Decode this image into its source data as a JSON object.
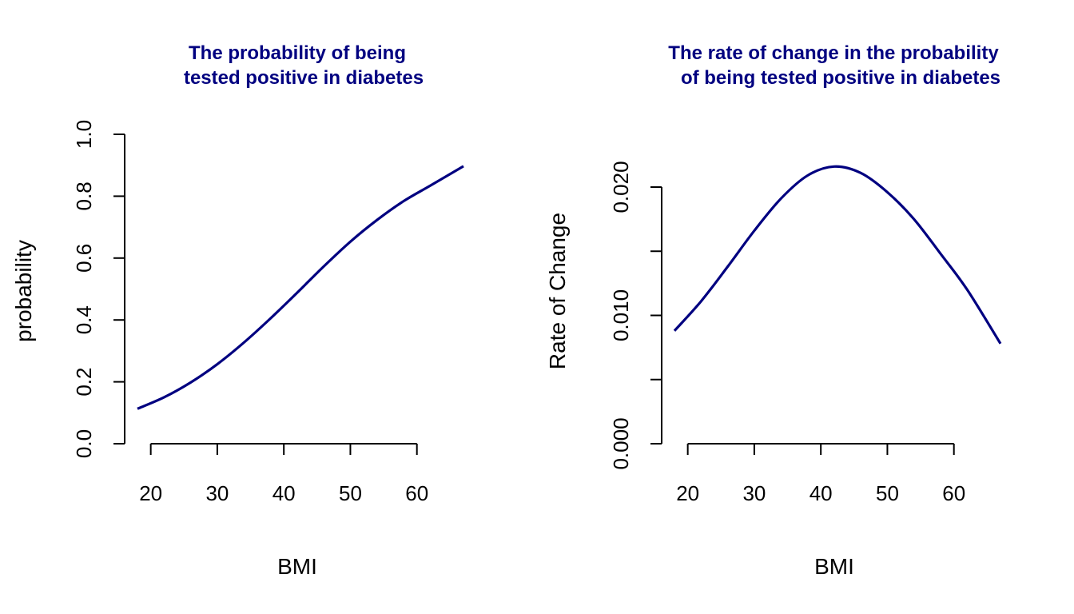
{
  "colors": {
    "curve": "#000080",
    "title": "#000080",
    "axis": "#000000",
    "background": "#ffffff"
  },
  "chart_data": [
    {
      "type": "line",
      "title_lines": [
        "The probability of being",
        "tested positive in diabetes"
      ],
      "xlabel": "BMI",
      "ylabel": "probability",
      "xlim": [
        18,
        67
      ],
      "ylim": [
        0,
        1
      ],
      "x_ticks": [
        20,
        30,
        40,
        50,
        60
      ],
      "x_tick_labels": [
        "20",
        "30",
        "40",
        "50",
        "60"
      ],
      "y_ticks": [
        0,
        0.2,
        0.4,
        0.6,
        0.8,
        1.0
      ],
      "y_tick_labels": [
        "0.0",
        "0.2",
        "0.4",
        "0.6",
        "0.8",
        "1.0"
      ],
      "series": [
        {
          "x": [
            18,
            22,
            26,
            30,
            34,
            38,
            42,
            46,
            50,
            54,
            58,
            62,
            67
          ],
          "y": [
            0.113,
            0.15,
            0.198,
            0.257,
            0.327,
            0.405,
            0.488,
            0.573,
            0.653,
            0.723,
            0.784,
            0.834,
            0.897
          ]
        }
      ]
    },
    {
      "type": "line",
      "title_lines": [
        "The rate of change in the probability",
        "of being tested positive in diabetes"
      ],
      "xlabel": "BMI",
      "ylabel": "Rate of Change",
      "xlim": [
        18,
        67
      ],
      "ylim": [
        0,
        0.02
      ],
      "x_ticks": [
        20,
        30,
        40,
        50,
        60
      ],
      "x_tick_labels": [
        "20",
        "30",
        "40",
        "50",
        "60"
      ],
      "y_ticks": [
        0,
        0.005,
        0.01,
        0.015,
        0.02
      ],
      "y_tick_labels": [
        "0.000",
        "",
        "0.010",
        "",
        "0.020"
      ],
      "series": [
        {
          "x": [
            18,
            22,
            26,
            30,
            34,
            38,
            42,
            46,
            50,
            54,
            58,
            62,
            67
          ],
          "y": [
            0.0088,
            0.0111,
            0.0138,
            0.0166,
            0.0191,
            0.0209,
            0.0216,
            0.0211,
            0.0196,
            0.0175,
            0.0148,
            0.012,
            0.0078
          ]
        }
      ]
    }
  ]
}
